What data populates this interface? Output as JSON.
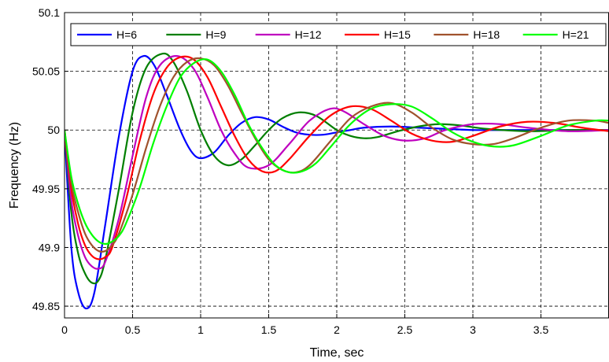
{
  "chart_data": {
    "type": "line",
    "title": "",
    "xlabel": "Time, sec",
    "ylabel": "Frequency (Hz)",
    "xlim": [
      0,
      4
    ],
    "ylim": [
      49.84,
      50.1
    ],
    "xticks": [
      0,
      0.5,
      1,
      1.5,
      2,
      2.5,
      3,
      3.5
    ],
    "xtick_labels": [
      "0",
      "0.5",
      "1",
      "1.5",
      "2",
      "2.5",
      "3",
      "3.5"
    ],
    "yticks": [
      49.85,
      49.9,
      49.95,
      50,
      50.05,
      50.1
    ],
    "ytick_labels": [
      "49.85",
      "49.9",
      "49.95",
      "50",
      "50.05",
      "50.1"
    ],
    "grid": true,
    "legend": "top",
    "series": [
      {
        "name": "H=6",
        "color": "#0000ff",
        "x": [
          0,
          0.05,
          0.1,
          0.16,
          0.22,
          0.3,
          0.4,
          0.5,
          0.58,
          0.66,
          0.75,
          0.85,
          0.93,
          1.0,
          1.1,
          1.2,
          1.3,
          1.4,
          1.5,
          1.6,
          1.7,
          1.8,
          1.9,
          2.0,
          2.1,
          2.2,
          2.4,
          2.6,
          2.8,
          3.0,
          3.2,
          3.5,
          4.0
        ],
        "y": [
          50.0,
          49.9,
          49.862,
          49.848,
          49.862,
          49.92,
          49.995,
          50.05,
          50.063,
          50.055,
          50.03,
          50.0,
          49.982,
          49.976,
          49.981,
          49.995,
          50.006,
          50.011,
          50.009,
          50.003,
          49.998,
          49.996,
          49.996,
          49.998,
          50.0,
          50.002,
          50.003,
          50.002,
          50.001,
          50.0,
          50.0,
          50.0,
          50.0
        ]
      },
      {
        "name": "H=9",
        "color": "#007f00",
        "x": [
          0,
          0.05,
          0.1,
          0.15,
          0.2,
          0.25,
          0.3,
          0.4,
          0.5,
          0.6,
          0.72,
          0.8,
          0.9,
          1.0,
          1.1,
          1.2,
          1.3,
          1.4,
          1.5,
          1.6,
          1.72,
          1.85,
          2.0,
          2.1,
          2.2,
          2.3,
          2.45,
          2.6,
          2.75,
          2.9,
          3.1,
          3.4,
          3.7,
          4.0
        ],
        "y": [
          50.0,
          49.93,
          49.895,
          49.878,
          49.87,
          49.872,
          49.89,
          49.95,
          50.015,
          50.053,
          50.065,
          50.058,
          50.033,
          50.0,
          49.978,
          49.97,
          49.975,
          49.987,
          50.0,
          50.01,
          50.015,
          50.012,
          50.0,
          49.995,
          49.993,
          49.994,
          49.999,
          50.003,
          50.005,
          50.004,
          50.001,
          49.999,
          50.0,
          50.0
        ]
      },
      {
        "name": "H=12",
        "color": "#bf00bf",
        "x": [
          0,
          0.05,
          0.1,
          0.15,
          0.2,
          0.25,
          0.3,
          0.4,
          0.5,
          0.6,
          0.7,
          0.83,
          0.95,
          1.05,
          1.15,
          1.25,
          1.35,
          1.5,
          1.65,
          1.8,
          1.95,
          2.05,
          2.2,
          2.35,
          2.5,
          2.65,
          2.8,
          3.0,
          3.2,
          3.4,
          3.7,
          4.0
        ],
        "y": [
          50.0,
          49.94,
          49.91,
          49.892,
          49.884,
          49.882,
          49.888,
          49.925,
          49.978,
          50.028,
          50.055,
          50.063,
          50.052,
          50.028,
          50.0,
          49.98,
          49.968,
          49.97,
          49.988,
          50.008,
          50.018,
          50.016,
          50.005,
          49.995,
          49.991,
          49.993,
          50.0,
          50.005,
          50.005,
          50.002,
          49.999,
          50.0
        ]
      },
      {
        "name": "H=15",
        "color": "#ff0000",
        "x": [
          0,
          0.05,
          0.1,
          0.15,
          0.2,
          0.25,
          0.3,
          0.35,
          0.45,
          0.55,
          0.65,
          0.75,
          0.85,
          0.95,
          1.05,
          1.15,
          1.25,
          1.35,
          1.45,
          1.55,
          1.65,
          1.8,
          1.95,
          2.1,
          2.25,
          2.4,
          2.55,
          2.7,
          2.85,
          3.0,
          3.2,
          3.4,
          3.6,
          3.8,
          4.0
        ],
        "y": [
          50.0,
          49.95,
          49.92,
          49.902,
          49.893,
          49.89,
          49.892,
          49.9,
          49.94,
          49.99,
          50.03,
          50.053,
          50.062,
          50.06,
          50.045,
          50.02,
          49.995,
          49.975,
          49.965,
          49.965,
          49.975,
          49.995,
          50.012,
          50.02,
          50.018,
          50.008,
          49.997,
          49.991,
          49.99,
          49.995,
          50.003,
          50.007,
          50.006,
          50.002,
          49.999
        ]
      },
      {
        "name": "H=18",
        "color": "#a0522d",
        "x": [
          0,
          0.05,
          0.1,
          0.15,
          0.2,
          0.25,
          0.3,
          0.35,
          0.4,
          0.5,
          0.6,
          0.7,
          0.8,
          0.9,
          1.0,
          1.1,
          1.2,
          1.3,
          1.4,
          1.5,
          1.6,
          1.7,
          1.8,
          1.95,
          2.1,
          2.25,
          2.4,
          2.55,
          2.7,
          2.85,
          3.0,
          3.15,
          3.3,
          3.5,
          3.7,
          3.9,
          4.0
        ],
        "y": [
          50.0,
          49.955,
          49.93,
          49.912,
          49.902,
          49.897,
          49.897,
          49.902,
          49.912,
          49.945,
          49.985,
          50.02,
          50.045,
          50.058,
          50.061,
          50.055,
          50.038,
          50.015,
          49.993,
          49.975,
          49.966,
          49.964,
          49.97,
          49.99,
          50.01,
          50.02,
          50.023,
          50.015,
          50.002,
          49.992,
          49.988,
          49.988,
          49.993,
          50.002,
          50.008,
          50.008,
          50.006
        ]
      },
      {
        "name": "H=21",
        "color": "#00ff00",
        "x": [
          0,
          0.05,
          0.1,
          0.15,
          0.2,
          0.25,
          0.3,
          0.35,
          0.4,
          0.45,
          0.55,
          0.65,
          0.75,
          0.85,
          0.95,
          1.05,
          1.15,
          1.25,
          1.35,
          1.45,
          1.55,
          1.65,
          1.75,
          1.85,
          1.95,
          2.1,
          2.25,
          2.4,
          2.55,
          2.7,
          2.85,
          3.0,
          3.15,
          3.3,
          3.5,
          3.7,
          3.9,
          4.0
        ],
        "y": [
          50.0,
          49.96,
          49.937,
          49.921,
          49.911,
          49.905,
          49.903,
          49.905,
          49.91,
          49.92,
          49.95,
          49.988,
          50.02,
          50.045,
          50.057,
          50.06,
          50.05,
          50.03,
          50.005,
          49.985,
          49.97,
          49.964,
          49.965,
          49.972,
          49.985,
          50.005,
          50.018,
          50.022,
          50.02,
          50.01,
          49.998,
          49.99,
          49.986,
          49.987,
          49.995,
          50.004,
          50.008,
          50.008
        ]
      }
    ]
  }
}
